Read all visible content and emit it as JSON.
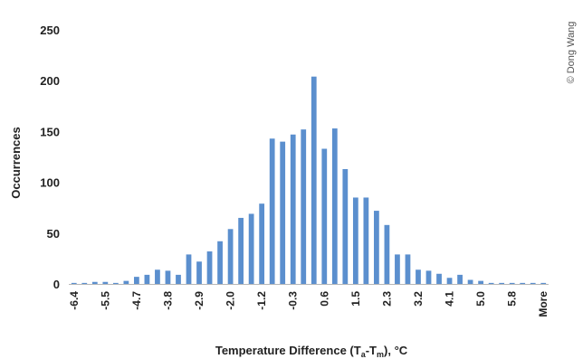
{
  "chart_data": {
    "type": "bar",
    "title": "",
    "ylabel": "Occurrences",
    "xlabel": "Temperature Difference (T",
    "xlabel_sub1": "a",
    "xlabel_mid": "-T",
    "xlabel_sub2": "m",
    "xlabel_end": "), °C",
    "ylim": [
      0,
      250
    ],
    "yticks": [
      0,
      50,
      100,
      150,
      200,
      250
    ],
    "x_tick_labels": [
      "-6.4",
      "-5.5",
      "-4.7",
      "-3.8",
      "-2.9",
      "-2.0",
      "-1.2",
      "-0.3",
      "0.6",
      "1.5",
      "2.3",
      "3.2",
      "4.1",
      "5.0",
      "5.8",
      "More"
    ],
    "values": [
      1,
      1,
      2,
      2,
      1,
      3,
      7,
      9,
      14,
      13,
      9,
      29,
      22,
      32,
      42,
      54,
      65,
      69,
      79,
      143,
      140,
      147,
      152,
      204,
      133,
      153,
      113,
      85,
      85,
      72,
      58,
      29,
      29,
      14,
      13,
      10,
      6,
      9,
      4,
      3,
      1,
      1,
      1,
      1,
      1,
      1
    ],
    "grid": false,
    "legend": "none",
    "bar_color": "#5b8fce"
  },
  "credit": "© Dong Wang"
}
